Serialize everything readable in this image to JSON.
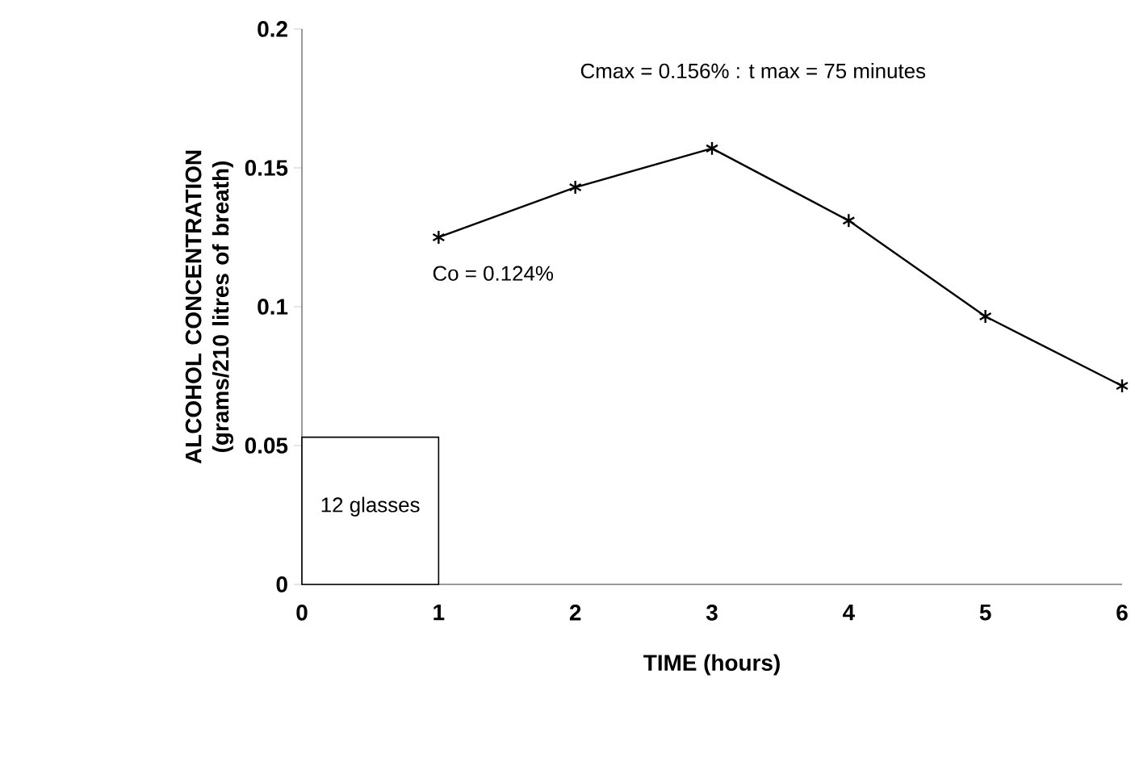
{
  "chart_data": {
    "type": "line",
    "xlabel": "TIME (hours)",
    "ylabel": "ALCOHOL CONCENTRATION (grams/210 litres of breath)",
    "series": [
      {
        "color": "#000000",
        "x": [
          1,
          2,
          3,
          4,
          5,
          6
        ],
        "values": [
          0.125,
          0.143,
          0.157,
          0.131,
          0.0965,
          0.0715
        ]
      },
      {
        "type": "bar",
        "color": "#ffffff",
        "x": [
          0.5
        ],
        "values": [
          0.053
        ]
      }
    ],
    "annotations": [
      "Cmax = 0.156% : t max = 75 minutes",
      "Co = 0.124%",
      "12 glasses"
    ],
    "xlim": [
      0,
      6
    ],
    "ylim": [
      0,
      0.2
    ],
    "xticks": [
      0,
      1,
      2,
      3,
      4,
      5,
      6
    ],
    "yticks": [
      0,
      0.05,
      0.1,
      0.15,
      0.2
    ],
    "marker": "cross",
    "line_style": "solid"
  }
}
